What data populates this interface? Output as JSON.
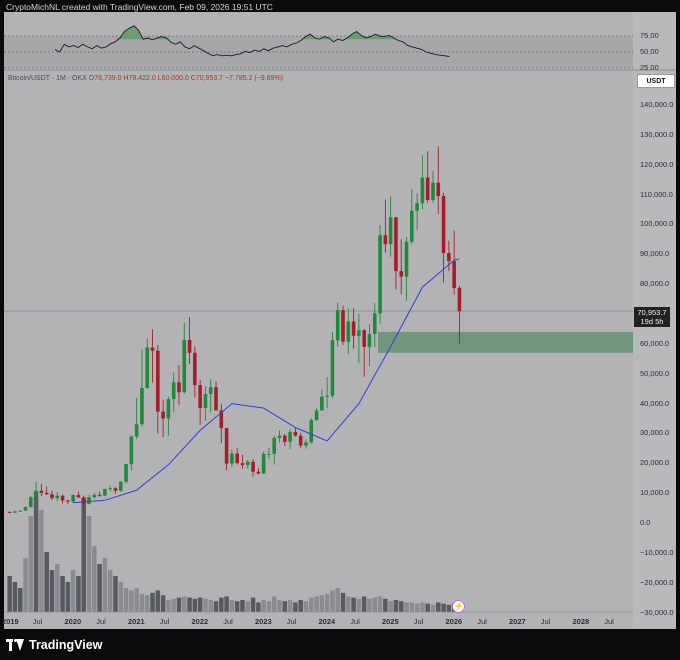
{
  "header": {
    "text": "CryptoMichNL created with TradingView.com, Feb 09, 2026 19:51 UTC"
  },
  "instrument": {
    "legend": "Bitcoin/USDT · 1M · OKX",
    "ohlc": "O78,739.0  H79,422.0  L60,000.0  C70,953.7  −7,785.2 (−9.89%)"
  },
  "currency_label": "USDT",
  "last_price": {
    "value": "70,953.7",
    "countdown": "19d 5h"
  },
  "rsi_ticks": [
    "75.00",
    "50.00",
    "25.00"
  ],
  "price_ticks": [
    "140,000.0",
    "130,000.0",
    "120,000.0",
    "110,000.0",
    "100,000.0",
    "90,000.0",
    "80,000.0",
    "60,000.0",
    "50,000.0",
    "40,000.0",
    "30,000.0",
    "20,000.0",
    "10,000.0",
    "0.0",
    "−10,000.0",
    "−20,000.0",
    "−30,000.0"
  ],
  "x_ticks": [
    "2019",
    "Jul",
    "2020",
    "Jul",
    "2021",
    "Jul",
    "2022",
    "Jul",
    "2023",
    "Jul",
    "2024",
    "Jul",
    "2025",
    "Jul",
    "2026",
    "Jul",
    "2027",
    "Jul",
    "2028",
    "Jul"
  ],
  "brand": "TradingView",
  "icons": {
    "brand_icon": "tradingview-logo-icon",
    "replay_icon": "lightning-icon"
  },
  "colors": {
    "up": "#1f8a3a",
    "down": "#a3202a",
    "ma": "#2d3fe0",
    "zone": "#5e8a6a",
    "background": "#b3b3b6"
  },
  "chart_data": {
    "type": "candlestick",
    "timeframe": "1M",
    "ylim": [
      -30000,
      145000
    ],
    "xlim": [
      "2019-01",
      "2028-12"
    ],
    "candles": [
      [
        "2019-01",
        3700,
        3900,
        3300,
        3450
      ],
      [
        "2019-02",
        3450,
        4200,
        3400,
        3850
      ],
      [
        "2019-03",
        3850,
        4150,
        3700,
        4100
      ],
      [
        "2019-04",
        4100,
        5600,
        4100,
        5300
      ],
      [
        "2019-05",
        5300,
        9000,
        5300,
        8600
      ],
      [
        "2019-06",
        8600,
        13800,
        7500,
        10800
      ],
      [
        "2019-07",
        10800,
        13200,
        9100,
        10100
      ],
      [
        "2019-08",
        10100,
        12300,
        9400,
        9600
      ],
      [
        "2019-09",
        9600,
        10900,
        7700,
        8300
      ],
      [
        "2019-10",
        8300,
        10400,
        7300,
        9150
      ],
      [
        "2019-11",
        9150,
        9500,
        6500,
        7550
      ],
      [
        "2019-12",
        7550,
        7750,
        6400,
        7200
      ],
      [
        "2020-01",
        7200,
        9600,
        6850,
        9350
      ],
      [
        "2020-02",
        9350,
        10500,
        8400,
        8600
      ],
      [
        "2020-03",
        8600,
        9200,
        3800,
        6400
      ],
      [
        "2020-04",
        6400,
        9450,
        6200,
        8650
      ],
      [
        "2020-05",
        8650,
        10100,
        8100,
        9450
      ],
      [
        "2020-06",
        9450,
        10400,
        8800,
        9150
      ],
      [
        "2020-07",
        9150,
        11450,
        8950,
        11350
      ],
      [
        "2020-08",
        11350,
        12450,
        10600,
        11650
      ],
      [
        "2020-09",
        11650,
        12050,
        9850,
        10800
      ],
      [
        "2020-10",
        10800,
        14100,
        10550,
        13800
      ],
      [
        "2020-11",
        13800,
        19900,
        13200,
        19700
      ],
      [
        "2020-12",
        19700,
        29300,
        17600,
        28950
      ],
      [
        "2021-01",
        28950,
        41900,
        28100,
        33100
      ],
      [
        "2021-02",
        33100,
        58350,
        32300,
        45200
      ],
      [
        "2021-03",
        45200,
        61800,
        45000,
        58800
      ],
      [
        "2021-04",
        58800,
        64900,
        47000,
        57700
      ],
      [
        "2021-05",
        57700,
        59600,
        30000,
        37300
      ],
      [
        "2021-06",
        37300,
        41300,
        28800,
        35000
      ],
      [
        "2021-07",
        35000,
        42300,
        29300,
        41500
      ],
      [
        "2021-08",
        41500,
        50500,
        37300,
        47100
      ],
      [
        "2021-09",
        47100,
        52900,
        39600,
        43800
      ],
      [
        "2021-10",
        43800,
        67000,
        43300,
        61300
      ],
      [
        "2021-11",
        61300,
        69000,
        53300,
        57000
      ],
      [
        "2021-12",
        57000,
        59100,
        42000,
        46200
      ],
      [
        "2022-01",
        46200,
        47900,
        32900,
        38500
      ],
      [
        "2022-02",
        38500,
        45800,
        34300,
        43200
      ],
      [
        "2022-03",
        43200,
        48200,
        37200,
        45500
      ],
      [
        "2022-04",
        45500,
        47400,
        37600,
        37700
      ],
      [
        "2022-05",
        37700,
        40000,
        26700,
        31800
      ],
      [
        "2022-06",
        31800,
        31900,
        17600,
        19900
      ],
      [
        "2022-07",
        19900,
        24700,
        18800,
        23300
      ],
      [
        "2022-08",
        23300,
        25200,
        19600,
        20050
      ],
      [
        "2022-09",
        20050,
        22800,
        18150,
        19400
      ],
      [
        "2022-10",
        19400,
        21100,
        18200,
        20500
      ],
      [
        "2022-11",
        20500,
        21450,
        15500,
        17150
      ],
      [
        "2022-12",
        17150,
        18400,
        16300,
        16550
      ],
      [
        "2023-01",
        16550,
        23950,
        16500,
        23150
      ],
      [
        "2023-02",
        23150,
        25250,
        21400,
        23150
      ],
      [
        "2023-03",
        23150,
        29200,
        19550,
        28500
      ],
      [
        "2023-04",
        28500,
        31000,
        26900,
        29250
      ],
      [
        "2023-05",
        29250,
        29800,
        25800,
        27200
      ],
      [
        "2023-06",
        27200,
        31400,
        24800,
        30500
      ],
      [
        "2023-07",
        30500,
        31800,
        28900,
        29250
      ],
      [
        "2023-08",
        29250,
        30200,
        25200,
        25950
      ],
      [
        "2023-09",
        25950,
        28000,
        24900,
        27000
      ],
      [
        "2023-10",
        27000,
        35200,
        26600,
        34500
      ],
      [
        "2023-11",
        34500,
        38400,
        34100,
        37700
      ],
      [
        "2023-12",
        37700,
        44700,
        37600,
        42300
      ],
      [
        "2024-01",
        42300,
        48900,
        38500,
        42600
      ],
      [
        "2024-02",
        42600,
        64000,
        41900,
        61200
      ],
      [
        "2024-03",
        61200,
        73800,
        59000,
        71300
      ],
      [
        "2024-04",
        71300,
        72800,
        59600,
        60700
      ],
      [
        "2024-05",
        60700,
        71900,
        56600,
        67500
      ],
      [
        "2024-06",
        67500,
        71900,
        58400,
        62700
      ],
      [
        "2024-07",
        62700,
        70000,
        53500,
        64600
      ],
      [
        "2024-08",
        64600,
        65000,
        49000,
        59000
      ],
      [
        "2024-09",
        59000,
        66500,
        52600,
        63300
      ],
      [
        "2024-10",
        63300,
        73600,
        58900,
        70200
      ],
      [
        "2024-11",
        70200,
        99800,
        66800,
        96400
      ],
      [
        "2024-12",
        96400,
        108300,
        90500,
        93400
      ],
      [
        "2025-01",
        93400,
        109400,
        89200,
        102400
      ],
      [
        "2025-02",
        102400,
        102500,
        78200,
        84350
      ],
      [
        "2025-03",
        84350,
        95000,
        76600,
        82500
      ],
      [
        "2025-04",
        82500,
        95750,
        74500,
        94200
      ],
      [
        "2025-05",
        94200,
        111900,
        93400,
        104600
      ],
      [
        "2025-06",
        104600,
        110500,
        98200,
        107100
      ],
      [
        "2025-07",
        107100,
        123200,
        105100,
        115700
      ],
      [
        "2025-08",
        115700,
        124500,
        107300,
        108200
      ],
      [
        "2025-09",
        108200,
        117900,
        107300,
        114000
      ],
      [
        "2025-10",
        114000,
        126200,
        103500,
        109500
      ],
      [
        "2025-11",
        109500,
        110600,
        80600,
        90400
      ],
      [
        "2025-12",
        90400,
        94600,
        84400,
        87700
      ],
      [
        "2026-01",
        87700,
        97900,
        76500,
        78739
      ],
      [
        "2026-02",
        78739,
        79422,
        60000,
        70953.7
      ]
    ],
    "moving_average": [
      [
        "2020-01",
        6800
      ],
      [
        "2020-07",
        7600
      ],
      [
        "2021-01",
        11000
      ],
      [
        "2021-07",
        19500
      ],
      [
        "2022-01",
        31000
      ],
      [
        "2022-07",
        40000
      ],
      [
        "2023-01",
        38500
      ],
      [
        "2023-07",
        32000
      ],
      [
        "2024-01",
        27500
      ],
      [
        "2024-07",
        40000
      ],
      [
        "2025-01",
        59000
      ],
      [
        "2025-07",
        79000
      ],
      [
        "2026-01",
        88000
      ],
      [
        "2026-02",
        88500
      ]
    ],
    "support_zone": {
      "from": 57000,
      "to": 64000,
      "start": "2024-11"
    },
    "last_price": 70953.7,
    "volume": [
      [
        0.3,
        "d"
      ],
      [
        0.25,
        "d"
      ],
      [
        0.2,
        "d"
      ],
      [
        0.45,
        "l"
      ],
      [
        0.8,
        "l"
      ],
      [
        1.0,
        "d"
      ],
      [
        0.85,
        "l"
      ],
      [
        0.5,
        "d"
      ],
      [
        0.35,
        "d"
      ],
      [
        0.4,
        "l"
      ],
      [
        0.3,
        "d"
      ],
      [
        0.25,
        "d"
      ],
      [
        0.35,
        "l"
      ],
      [
        0.3,
        "d"
      ],
      [
        0.95,
        "d"
      ],
      [
        0.8,
        "l"
      ],
      [
        0.55,
        "l"
      ],
      [
        0.4,
        "d"
      ],
      [
        0.45,
        "l"
      ],
      [
        0.35,
        "l"
      ],
      [
        0.3,
        "d"
      ],
      [
        0.25,
        "l"
      ],
      [
        0.2,
        "l"
      ],
      [
        0.18,
        "l"
      ],
      [
        0.2,
        "l"
      ],
      [
        0.15,
        "l"
      ],
      [
        0.14,
        "l"
      ],
      [
        0.16,
        "d"
      ],
      [
        0.18,
        "d"
      ],
      [
        0.14,
        "d"
      ],
      [
        0.1,
        "l"
      ],
      [
        0.11,
        "l"
      ],
      [
        0.12,
        "d"
      ],
      [
        0.13,
        "l"
      ],
      [
        0.12,
        "d"
      ],
      [
        0.11,
        "d"
      ],
      [
        0.12,
        "d"
      ],
      [
        0.11,
        "l"
      ],
      [
        0.1,
        "l"
      ],
      [
        0.09,
        "d"
      ],
      [
        0.12,
        "d"
      ],
      [
        0.13,
        "d"
      ],
      [
        0.1,
        "l"
      ],
      [
        0.09,
        "d"
      ],
      [
        0.1,
        "d"
      ],
      [
        0.09,
        "l"
      ],
      [
        0.12,
        "d"
      ],
      [
        0.08,
        "d"
      ],
      [
        0.1,
        "l"
      ],
      [
        0.09,
        "l"
      ],
      [
        0.13,
        "l"
      ],
      [
        0.1,
        "l"
      ],
      [
        0.09,
        "d"
      ],
      [
        0.1,
        "l"
      ],
      [
        0.08,
        "d"
      ],
      [
        0.1,
        "d"
      ],
      [
        0.09,
        "l"
      ],
      [
        0.12,
        "l"
      ],
      [
        0.13,
        "l"
      ],
      [
        0.14,
        "l"
      ],
      [
        0.15,
        "l"
      ],
      [
        0.18,
        "l"
      ],
      [
        0.2,
        "l"
      ],
      [
        0.16,
        "d"
      ],
      [
        0.13,
        "l"
      ],
      [
        0.12,
        "d"
      ],
      [
        0.11,
        "l"
      ],
      [
        0.13,
        "d"
      ],
      [
        0.11,
        "l"
      ],
      [
        0.12,
        "l"
      ],
      [
        0.13,
        "l"
      ],
      [
        0.11,
        "d"
      ],
      [
        0.09,
        "l"
      ],
      [
        0.1,
        "d"
      ],
      [
        0.09,
        "d"
      ],
      [
        0.08,
        "l"
      ],
      [
        0.08,
        "l"
      ],
      [
        0.07,
        "l"
      ],
      [
        0.08,
        "l"
      ],
      [
        0.07,
        "d"
      ],
      [
        0.06,
        "l"
      ],
      [
        0.08,
        "d"
      ],
      [
        0.07,
        "d"
      ],
      [
        0.06,
        "d"
      ],
      [
        0.07,
        "d"
      ],
      [
        0.06,
        "d"
      ]
    ],
    "rsi": [
      [
        0,
        54
      ],
      [
        1,
        50
      ],
      [
        2,
        62
      ],
      [
        3,
        58
      ],
      [
        4,
        60
      ],
      [
        5,
        57
      ],
      [
        6,
        62
      ],
      [
        7,
        58
      ],
      [
        8,
        55
      ],
      [
        9,
        60
      ],
      [
        10,
        56
      ],
      [
        11,
        58
      ],
      [
        12,
        63
      ],
      [
        13,
        66
      ],
      [
        14,
        72
      ],
      [
        15,
        82
      ],
      [
        16,
        87
      ],
      [
        17,
        91
      ],
      [
        18,
        84
      ],
      [
        19,
        70
      ],
      [
        20,
        72
      ],
      [
        21,
        69
      ],
      [
        22,
        72
      ],
      [
        23,
        74
      ],
      [
        24,
        72
      ],
      [
        25,
        65
      ],
      [
        26,
        62
      ],
      [
        27,
        66
      ],
      [
        28,
        58
      ],
      [
        29,
        55
      ],
      [
        30,
        60
      ],
      [
        31,
        56
      ],
      [
        32,
        52
      ],
      [
        33,
        48
      ],
      [
        34,
        44
      ],
      [
        35,
        46
      ],
      [
        36,
        44
      ],
      [
        37,
        45
      ],
      [
        38,
        44
      ],
      [
        39,
        46
      ],
      [
        40,
        47
      ],
      [
        41,
        51
      ],
      [
        42,
        49
      ],
      [
        43,
        53
      ],
      [
        44,
        51
      ],
      [
        45,
        55
      ],
      [
        46,
        52
      ],
      [
        47,
        56
      ],
      [
        48,
        58
      ],
      [
        49,
        60
      ],
      [
        50,
        58
      ],
      [
        51,
        62
      ],
      [
        52,
        64
      ],
      [
        53,
        68
      ],
      [
        54,
        74
      ],
      [
        55,
        78
      ],
      [
        56,
        72
      ],
      [
        57,
        70
      ],
      [
        58,
        74
      ],
      [
        59,
        72
      ],
      [
        60,
        66
      ],
      [
        61,
        70
      ],
      [
        62,
        68
      ],
      [
        63,
        72
      ],
      [
        64,
        78
      ],
      [
        65,
        82
      ],
      [
        66,
        76
      ],
      [
        67,
        72
      ],
      [
        68,
        74
      ],
      [
        69,
        78
      ],
      [
        70,
        75
      ],
      [
        71,
        74
      ],
      [
        72,
        76
      ],
      [
        73,
        72
      ],
      [
        74,
        68
      ],
      [
        75,
        66
      ],
      [
        76,
        60
      ],
      [
        77,
        58
      ],
      [
        78,
        56
      ],
      [
        79,
        54
      ],
      [
        80,
        50
      ],
      [
        81,
        48
      ],
      [
        82,
        46
      ],
      [
        83,
        45
      ],
      [
        84,
        44
      ],
      [
        85,
        43
      ]
    ],
    "rsi_ylim": [
      25,
      100
    ]
  }
}
